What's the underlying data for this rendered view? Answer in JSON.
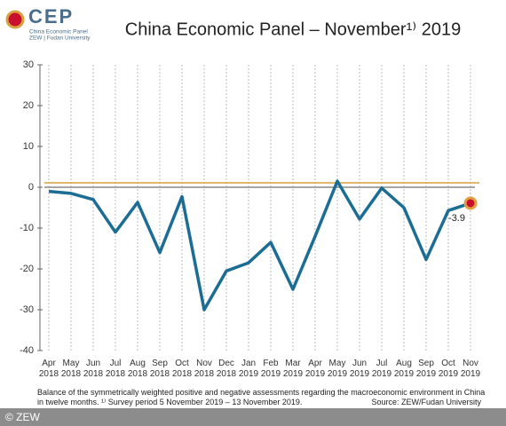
{
  "logo": {
    "name": "CEP",
    "line1": "China Economic Panel",
    "line2": "ZEW | Fudan University"
  },
  "chart_data": {
    "type": "line",
    "title": "China Economic Panel – November¹⁾ 2019",
    "categories": [
      "Apr 2018",
      "May 2018",
      "Jun 2018",
      "Jul 2018",
      "Aug 2018",
      "Sep 2018",
      "Oct 2018",
      "Nov 2018",
      "Dec 2018",
      "Jan 2019",
      "Feb 2019",
      "Mar 2019",
      "Apr 2019",
      "May 2019",
      "Jun 2019",
      "Jul 2019",
      "Aug 2019",
      "Sep 2019",
      "Oct 2019",
      "Nov 2019"
    ],
    "series": [
      {
        "color": "#1b6d94",
        "values": [
          -1.0,
          -1.5,
          -3.0,
          -11.0,
          -3.7,
          -16.0,
          -2.3,
          -30.0,
          -20.5,
          -18.5,
          -13.5,
          -25.0,
          -12.0,
          1.5,
          -7.8,
          -0.2,
          -5.0,
          -17.7,
          -5.7,
          -3.9
        ]
      }
    ],
    "reference_line": {
      "value": 1.1,
      "color": "#d9a03f"
    },
    "ylim": [
      -40,
      30
    ],
    "yticks": [
      -40,
      -30,
      -20,
      -10,
      0,
      10,
      20,
      30
    ],
    "grid": true,
    "note": "Balance of the symmetrically weighted positive and negative assessments regarding the macroeconomic environment in China in twelve months. ¹⁾ Survey period 5 November 2019 – 13 November 2019.",
    "source": "Source: ZEW/Fudan University"
  },
  "copyright": "© ZEW"
}
